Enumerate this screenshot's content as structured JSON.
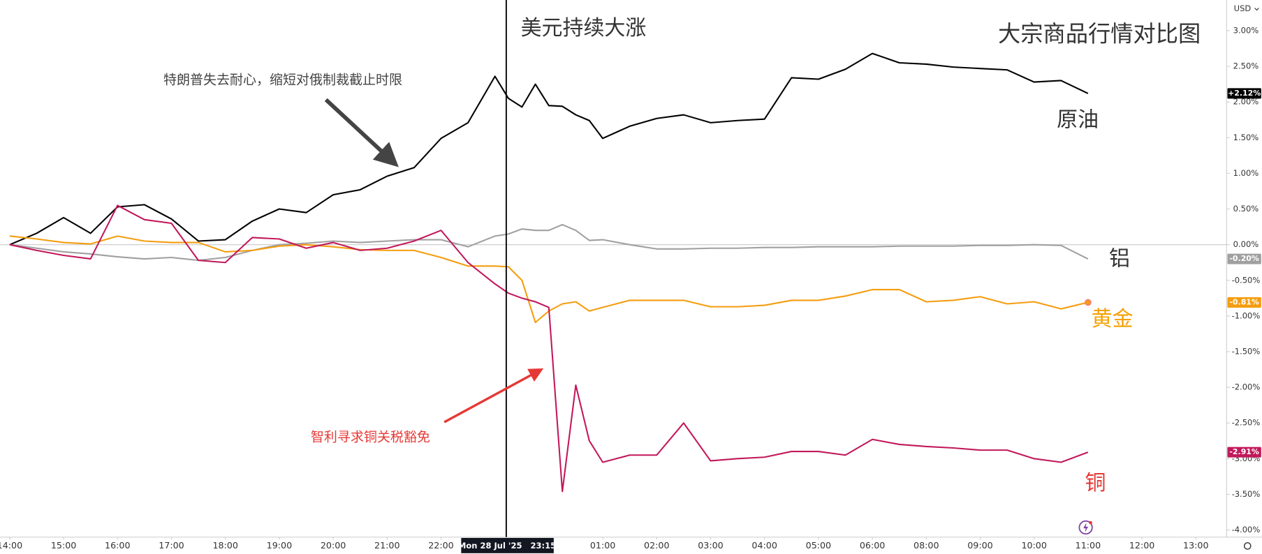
{
  "chart_data": {
    "type": "line",
    "title": "大宗商品行情对比图",
    "annotations": [
      "美元持续大涨",
      "特朗普失去耐心，缩短对俄制裁截止时限",
      "智利寻求铜关税豁免"
    ],
    "currency": "USD",
    "crosshair_label": "Mon 28 Jul '25   23:15",
    "x": [
      0,
      0.5,
      1,
      1.5,
      2,
      2.5,
      3,
      3.5,
      4,
      4.5,
      5,
      5.5,
      6,
      6.5,
      7,
      7.5,
      8,
      8.5,
      9,
      9.25,
      9.5,
      9.75,
      10,
      10.25,
      10.5,
      10.75,
      11,
      11.5,
      12,
      12.5,
      13,
      13.5,
      14,
      14.5,
      15,
      15.5,
      16,
      16.5,
      17,
      17.5,
      18,
      18.5,
      19,
      19.5,
      20
    ],
    "xlim": [
      -0.18,
      22.57
    ],
    "xticks": [
      {
        "value": 0,
        "label": "14:00"
      },
      {
        "value": 1,
        "label": "15:00"
      },
      {
        "value": 2,
        "label": "16:00"
      },
      {
        "value": 3,
        "label": "17:00"
      },
      {
        "value": 4,
        "label": "18:00"
      },
      {
        "value": 5,
        "label": "19:00"
      },
      {
        "value": 6,
        "label": "20:00"
      },
      {
        "value": 7,
        "label": "21:00"
      },
      {
        "value": 8,
        "label": "22:00"
      },
      {
        "value": 11,
        "label": "01:00"
      },
      {
        "value": 12,
        "label": "02:00"
      },
      {
        "value": 13,
        "label": "03:00"
      },
      {
        "value": 14,
        "label": "04:00"
      },
      {
        "value": 15,
        "label": "05:00"
      },
      {
        "value": 16,
        "label": "06:00"
      },
      {
        "value": 17,
        "label": "08:00"
      },
      {
        "value": 18,
        "label": "09:00"
      },
      {
        "value": 19,
        "label": "10:00"
      },
      {
        "value": 20,
        "label": "11:00"
      },
      {
        "value": 21,
        "label": "12:00"
      },
      {
        "value": 22,
        "label": "13:00"
      }
    ],
    "ylim": [
      -4.1,
      3.43
    ],
    "yticks": [
      {
        "value": 3,
        "label": "3.00%"
      },
      {
        "value": 2.5,
        "label": "2.50%"
      },
      {
        "value": 2,
        "label": "2.00%"
      },
      {
        "value": 1.5,
        "label": "1.50%"
      },
      {
        "value": 1,
        "label": "1.00%"
      },
      {
        "value": 0.5,
        "label": "0.50%"
      },
      {
        "value": 0,
        "label": "0.00%"
      },
      {
        "value": -0.5,
        "label": "-0.50%"
      },
      {
        "value": -1,
        "label": "-1.00%"
      },
      {
        "value": -1.5,
        "label": "-1.50%"
      },
      {
        "value": -2,
        "label": "-2.00%"
      },
      {
        "value": -2.5,
        "label": "-2.50%"
      },
      {
        "value": -3,
        "label": "-3.00%"
      },
      {
        "value": -3.5,
        "label": "-3.50%"
      },
      {
        "value": -4,
        "label": "-4.00%"
      }
    ],
    "series": [
      {
        "name": "原油",
        "color": "#000000",
        "last_label": "+2.12%",
        "values": [
          0,
          0.16,
          0.38,
          0.16,
          0.53,
          0.56,
          0.36,
          0.05,
          0.07,
          0.33,
          0.5,
          0.45,
          0.7,
          0.77,
          0.96,
          1.08,
          1.49,
          1.71,
          2.36,
          2.05,
          1.93,
          2.25,
          1.95,
          1.94,
          1.82,
          1.74,
          1.49,
          1.66,
          1.77,
          1.82,
          1.71,
          1.74,
          1.76,
          2.34,
          2.32,
          2.46,
          2.68,
          2.55,
          2.53,
          2.49,
          2.47,
          2.45,
          2.28,
          2.3,
          2.12
        ]
      },
      {
        "name": "铝",
        "color": "#a0a0a0",
        "last_label": "-0.20%",
        "values": [
          0,
          -0.05,
          -0.1,
          -0.13,
          -0.17,
          -0.2,
          -0.18,
          -0.22,
          -0.18,
          -0.08,
          0,
          0.02,
          0.05,
          0.03,
          0.05,
          0.07,
          0.07,
          -0.03,
          0.12,
          0.15,
          0.22,
          0.2,
          0.2,
          0.28,
          0.2,
          0.06,
          0.07,
          0,
          -0.06,
          -0.06,
          -0.05,
          -0.05,
          -0.04,
          -0.04,
          -0.03,
          -0.03,
          -0.03,
          -0.02,
          -0.02,
          -0.02,
          -0.01,
          -0.01,
          0,
          -0.01,
          -0.2
        ]
      },
      {
        "name": "黄金",
        "color": "#f59d0e",
        "last_label": "-0.81%",
        "values": [
          0.12,
          0.08,
          0.03,
          0.01,
          0.12,
          0.05,
          0.03,
          0.03,
          -0.1,
          -0.08,
          -0.02,
          0,
          -0.03,
          -0.07,
          -0.08,
          -0.08,
          -0.18,
          -0.3,
          -0.3,
          -0.31,
          -0.5,
          -1.09,
          -0.93,
          -0.83,
          -0.8,
          -0.93,
          -0.88,
          -0.78,
          -0.78,
          -0.78,
          -0.87,
          -0.87,
          -0.85,
          -0.78,
          -0.78,
          -0.72,
          -0.63,
          -0.63,
          -0.8,
          -0.78,
          -0.73,
          -0.83,
          -0.8,
          -0.9,
          -0.81
        ]
      },
      {
        "name": "铜",
        "color": "#c2185b",
        "last_label": "-2.91%",
        "values": [
          0,
          -0.08,
          -0.15,
          -0.2,
          0.55,
          0.35,
          0.3,
          -0.22,
          -0.25,
          0.1,
          0.08,
          -0.05,
          0.03,
          -0.08,
          -0.05,
          0.05,
          0.2,
          -0.25,
          -0.55,
          -0.68,
          -0.75,
          -0.8,
          -0.88,
          -3.46,
          -1.97,
          -2.75,
          -3.05,
          -2.95,
          -2.95,
          -2.5,
          -3.03,
          -3,
          -2.98,
          -2.9,
          -2.9,
          -2.95,
          -2.73,
          -2.8,
          -2.83,
          -2.85,
          -2.88,
          -2.88,
          -3,
          -3.05,
          -2.91
        ]
      }
    ]
  }
}
